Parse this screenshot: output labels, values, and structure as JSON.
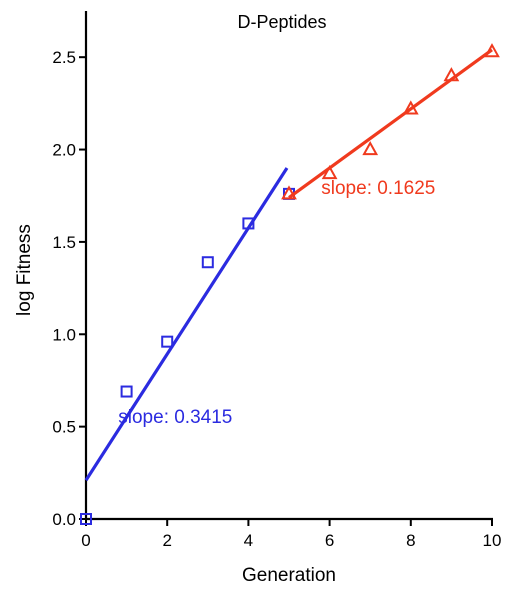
{
  "chart_data": {
    "type": "scatter",
    "title": "D-Peptides",
    "xlabel": "Generation",
    "ylabel": "log Fitness",
    "xlim": [
      0,
      10
    ],
    "ylim": [
      0,
      2.75
    ],
    "xticks": [
      0,
      2,
      4,
      6,
      8,
      10
    ],
    "xtick_labels": [
      "0",
      "2",
      "4",
      "6",
      "8",
      "10"
    ],
    "yticks": [
      0.0,
      0.5,
      1.0,
      1.5,
      2.0,
      2.5
    ],
    "ytick_labels": [
      "0.0",
      "0.5",
      "1.0",
      "1.5",
      "2.0",
      "2.5"
    ],
    "grid": false,
    "series": [
      {
        "marker": "square",
        "color": "#2b2be0",
        "x": [
          0,
          1,
          2,
          3,
          4,
          5
        ],
        "y": [
          0.0,
          0.69,
          0.96,
          1.39,
          1.6,
          1.76
        ],
        "fit": {
          "x": [
            0,
            4.95
          ],
          "y": [
            0.21,
            1.9
          ]
        }
      },
      {
        "marker": "triangle",
        "color": "#f03a1e",
        "x": [
          5,
          6,
          7,
          8,
          9,
          10
        ],
        "y": [
          1.76,
          1.87,
          2.0,
          2.22,
          2.4,
          2.53
        ],
        "fit": {
          "x": [
            5,
            10
          ],
          "y": [
            1.74,
            2.54
          ]
        }
      }
    ],
    "annotations": [
      {
        "text": "slope: 0.3415",
        "color": "#2b2be0",
        "x": 2.2,
        "y": 0.52
      },
      {
        "text": "slope: 0.1625",
        "color": "#f03a1e",
        "x": 7.2,
        "y": 1.76
      }
    ]
  }
}
